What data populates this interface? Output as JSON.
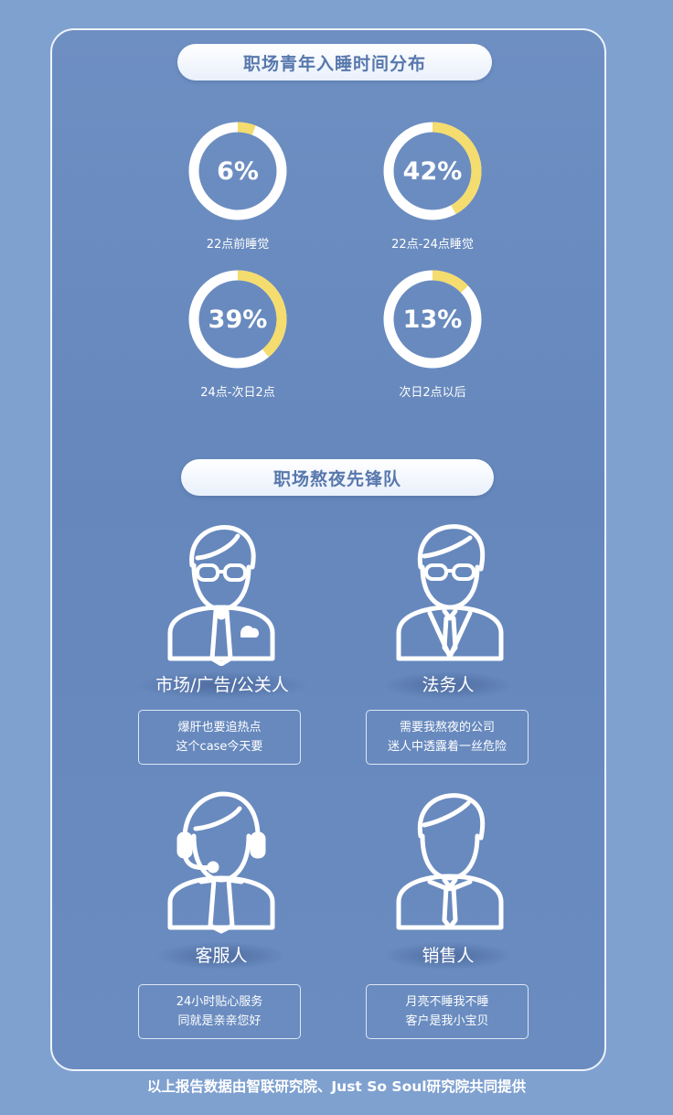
{
  "sleep_section": {
    "title": "职场青年入睡时间分布",
    "items": [
      {
        "value": "6%",
        "fraction": 0.06,
        "label": "22点前睡觉"
      },
      {
        "value": "42%",
        "fraction": 0.42,
        "label": "22点-24点睡觉"
      },
      {
        "value": "39%",
        "fraction": 0.39,
        "label": "24点-次日2点"
      },
      {
        "value": "13%",
        "fraction": 0.13,
        "label": "次日2点以后"
      }
    ]
  },
  "vanguard_section": {
    "title": "职场熬夜先锋队",
    "people": [
      {
        "icon": "marketing-person-icon",
        "role": "市场/广告/公关人",
        "quote": [
          "爆肝也要追热点",
          "这个case今天要"
        ]
      },
      {
        "icon": "lawyer-person-icon",
        "role": "法务人",
        "quote": [
          "需要我熬夜的公司",
          "迷人中透露着一丝危险"
        ]
      },
      {
        "icon": "customer-service-person-icon",
        "role": "客服人",
        "quote": [
          "24小时贴心服务",
          "同就是亲亲您好"
        ]
      },
      {
        "icon": "sales-person-icon",
        "role": "销售人",
        "quote": [
          "月亮不睡我不睡",
          "客户是我小宝贝"
        ]
      }
    ]
  },
  "footer": "以上报告数据由智联研究院、Just So Soul研究院共同提供",
  "colors": {
    "background": "#7fa1d0",
    "panel": "#6a8cc0",
    "ring_track": "#ffffff",
    "ring_fill": "#f4dc6e",
    "pill_text": "#5878ad"
  }
}
